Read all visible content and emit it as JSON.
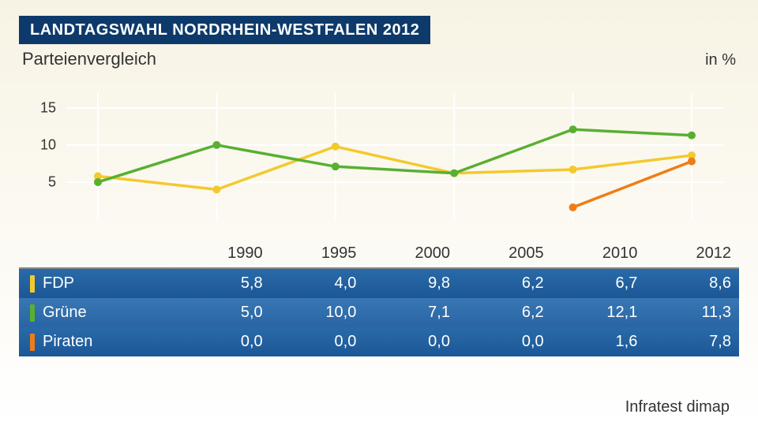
{
  "title": "LANDTAGSWAHL NORDRHEIN-WESTFALEN 2012",
  "subtitle": "Parteienvergleich",
  "unit_label": "in %",
  "source": "Infratest dimap",
  "chart": {
    "type": "line",
    "background_color": "transparent",
    "grid_color": "#ffffff",
    "x_categories": [
      "1990",
      "1995",
      "2000",
      "2005",
      "2010",
      "2012"
    ],
    "y": {
      "min": 0,
      "max": 17,
      "ticks": [
        5,
        10,
        15
      ]
    },
    "series": [
      {
        "name": "FDP",
        "color": "#f3c92d",
        "values": [
          5.8,
          4.0,
          9.8,
          6.2,
          6.7,
          8.6
        ],
        "display_values": [
          "5,8",
          "4,0",
          "9,8",
          "6,2",
          "6,7",
          "8,6"
        ]
      },
      {
        "name": "Grüne",
        "color": "#58b031",
        "values": [
          5.0,
          10.0,
          7.1,
          6.2,
          12.1,
          11.3
        ],
        "display_values": [
          "5,0",
          "10,0",
          "7,1",
          "6,2",
          "12,1",
          "11,3"
        ]
      },
      {
        "name": "Piraten",
        "color": "#ee7d17",
        "values": [
          0.0,
          0.0,
          0.0,
          0.0,
          1.6,
          7.8
        ],
        "display_values": [
          "0,0",
          "0,0",
          "0,0",
          "0,0",
          "1,6",
          "7,8"
        ],
        "draw_from_index": 4
      }
    ],
    "marker_radius": 5,
    "line_width": 3.5
  },
  "table": {
    "header_bg": "transparent",
    "row_bg_gradient_top": "#2a6aa8",
    "row_bg_gradient_bottom": "#1c5796",
    "text_color": "#ffffff",
    "columns": [
      "",
      "1990",
      "1995",
      "2000",
      "2005",
      "2010",
      "2012"
    ]
  }
}
